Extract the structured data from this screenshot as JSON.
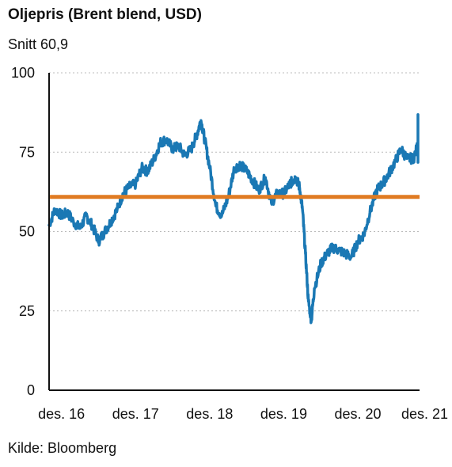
{
  "chart_data": {
    "type": "line",
    "title": "Oljepris (Brent blend, USD)",
    "subtitle": "Snitt 60,9",
    "source": "Kilde: Bloomberg",
    "xlabel": "",
    "ylabel": "",
    "ylim": [
      0,
      100
    ],
    "yticks": [
      0,
      25,
      50,
      75,
      100
    ],
    "ytick_labels": [
      "0",
      "25",
      "50",
      "75",
      "100"
    ],
    "xlim": [
      2016.75,
      2021.75
    ],
    "xticks": [
      2016.917,
      2017.917,
      2018.917,
      2019.917,
      2020.917,
      2021.917
    ],
    "xtick_labels": [
      "des. 16",
      "des. 17",
      "des. 18",
      "des. 19",
      "des. 20",
      "des. 21"
    ],
    "grid": "horizontal dotted",
    "colors": {
      "series": "#1a78b4",
      "average": "#e07b22",
      "grid": "#bbbbbb",
      "axis": "#111111"
    },
    "average": 60.9,
    "series": [
      {
        "x": [
          2016.75,
          2016.83,
          2016.92,
          2017.0,
          2017.08,
          2017.17,
          2017.25,
          2017.33,
          2017.42,
          2017.5,
          2017.58,
          2017.67,
          2017.75,
          2017.83,
          2017.92,
          2018.0,
          2018.08,
          2018.17,
          2018.25,
          2018.33,
          2018.42,
          2018.5,
          2018.58,
          2018.67,
          2018.75,
          2018.8,
          2018.85,
          2018.92,
          2019.0,
          2019.08,
          2019.17,
          2019.25,
          2019.33,
          2019.42,
          2019.5,
          2019.58,
          2019.67,
          2019.75,
          2019.83,
          2019.92,
          2020.0,
          2020.04,
          2020.08,
          2020.13,
          2020.17,
          2020.21,
          2020.25,
          2020.29,
          2020.33,
          2020.42,
          2020.5,
          2020.58,
          2020.67,
          2020.75,
          2020.83,
          2020.92,
          2021.0,
          2021.08,
          2021.17,
          2021.25,
          2021.33,
          2021.42,
          2021.5,
          2021.58,
          2021.67,
          2021.75,
          2021.8,
          2021.85,
          2021.92,
          2021.96,
          2022.0
        ],
        "values": [
          52,
          57,
          55,
          56,
          53,
          51,
          55,
          52,
          47,
          50,
          53,
          57,
          62,
          64,
          65,
          70,
          69,
          73,
          78,
          79,
          76,
          77,
          74,
          76,
          81,
          85,
          79,
          70,
          58,
          55,
          61,
          70,
          71,
          69,
          66,
          63,
          67,
          59,
          62,
          62,
          65,
          66,
          67,
          64,
          57,
          43,
          28,
          22,
          32,
          40,
          43,
          45,
          44,
          43,
          42,
          47,
          49,
          56,
          63,
          65,
          68,
          72,
          76,
          73,
          73,
          79,
          84,
          86,
          82,
          73,
          78
        ]
      }
    ]
  }
}
